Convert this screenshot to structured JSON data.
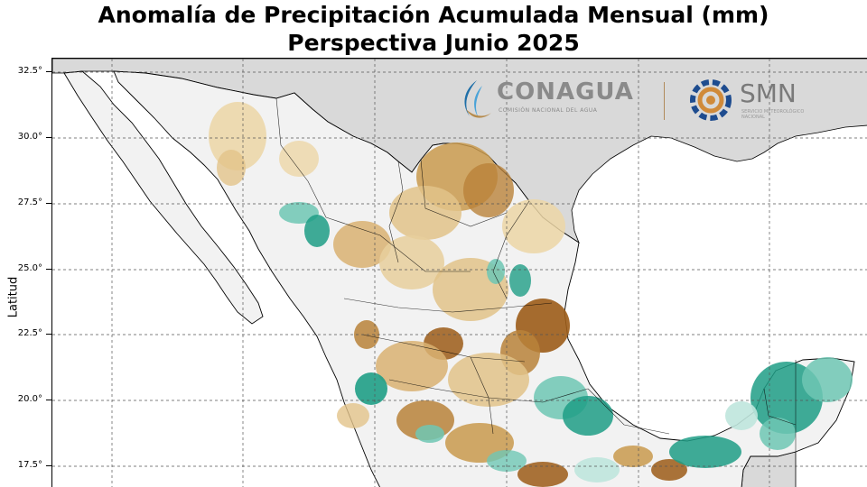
{
  "title": {
    "line1": "Anomalía de Precipitación Acumulada Mensual (mm)",
    "line2": "Perspectiva Junio 2025"
  },
  "axis": {
    "ylabel": "Latitud",
    "y_ticks": [
      "32.5°",
      "30.0°",
      "27.5°",
      "25.0°",
      "22.5°",
      "20.0°",
      "17.5°"
    ]
  },
  "logos": {
    "conagua": {
      "name": "CONAGUA",
      "subtitle": "COMISIÓN NACIONAL DEL AGUA"
    },
    "smn": {
      "name": "SMN",
      "subtitle": "SERVICIO METEOROLÓGICO NACIONAL"
    }
  },
  "legend_colors": {
    "strong_dry": "#9c5c18",
    "moderate_dry": "#c99a4e",
    "weak_dry": "#ecd6a6",
    "neutral": "#f2f2f2",
    "weak_wet": "#bfe6dd",
    "moderate_wet": "#6fc7b4",
    "strong_wet": "#1f9e86",
    "outside_country": "#d9d9d9",
    "ocean": "#ffffff"
  }
}
